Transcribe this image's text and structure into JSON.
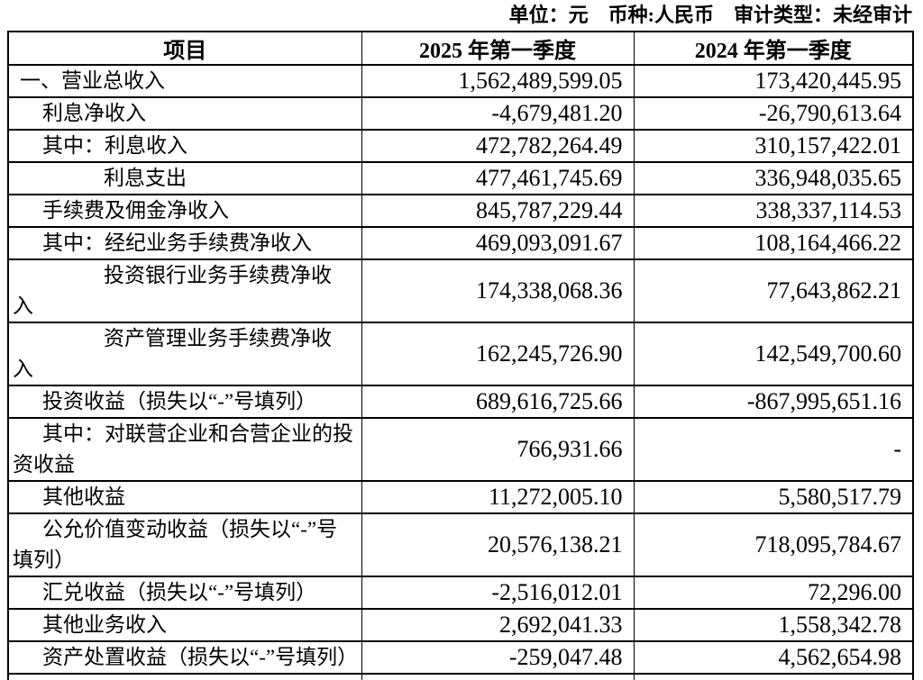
{
  "meta_line": "单位：元　币种:人民币　审计类型：未经审计",
  "table": {
    "headers": {
      "item": "项目",
      "q1_2025": "2025 年第一季度",
      "q1_2024": "2024 年第一季度"
    },
    "rows": [
      {
        "label": "一、营业总收入",
        "indent": 0,
        "v2025": "1,562,489,599.05",
        "v2024": "173,420,445.95"
      },
      {
        "label": "利息净收入",
        "indent": 1,
        "v2025": "-4,679,481.20",
        "v2024": "-26,790,613.64"
      },
      {
        "label": "其中：利息收入",
        "indent": 1,
        "v2025": "472,782,264.49",
        "v2024": "310,157,422.01"
      },
      {
        "label": "利息支出",
        "indent": 2,
        "v2025": "477,461,745.69",
        "v2024": "336,948,035.65"
      },
      {
        "label": "手续费及佣金净收入",
        "indent": 1,
        "v2025": "845,787,229.44",
        "v2024": "338,337,114.53"
      },
      {
        "label": "其中：经纪业务手续费净收入",
        "indent": 1,
        "v2025": "469,093,091.67",
        "v2024": "108,164,466.22"
      },
      {
        "label": "投资银行业务手续费净收\n入",
        "indent": 2,
        "v2025": "174,338,068.36",
        "v2024": "77,643,862.21"
      },
      {
        "label": "资产管理业务手续费净收\n入",
        "indent": 2,
        "v2025": "162,245,726.90",
        "v2024": "142,549,700.60"
      },
      {
        "label": "投资收益（损失以“-”号填列）",
        "indent": 1,
        "v2025": "689,616,725.66",
        "v2024": "-867,995,651.16"
      },
      {
        "label": "其中：对联营企业和合营企业的投\n资收益",
        "indent": 1,
        "v2025": "766,931.66",
        "v2024": "-"
      },
      {
        "label": "其他收益",
        "indent": 1,
        "v2025": "11,272,005.10",
        "v2024": "5,580,517.79"
      },
      {
        "label": "公允价值变动收益（损失以“-”号\n填列）",
        "indent": 1,
        "v2025": "20,576,138.21",
        "v2024": "718,095,784.67"
      },
      {
        "label": "汇兑收益（损失以“-”号填列）",
        "indent": 1,
        "v2025": "-2,516,012.01",
        "v2024": "72,296.00"
      },
      {
        "label": "其他业务收入",
        "indent": 1,
        "v2025": "2,692,041.33",
        "v2024": "1,558,342.78"
      },
      {
        "label": "资产处置收益（损失以“-”号填列）",
        "indent": 1,
        "v2025": "-259,047.48",
        "v2024": "4,562,654.98"
      }
    ]
  }
}
